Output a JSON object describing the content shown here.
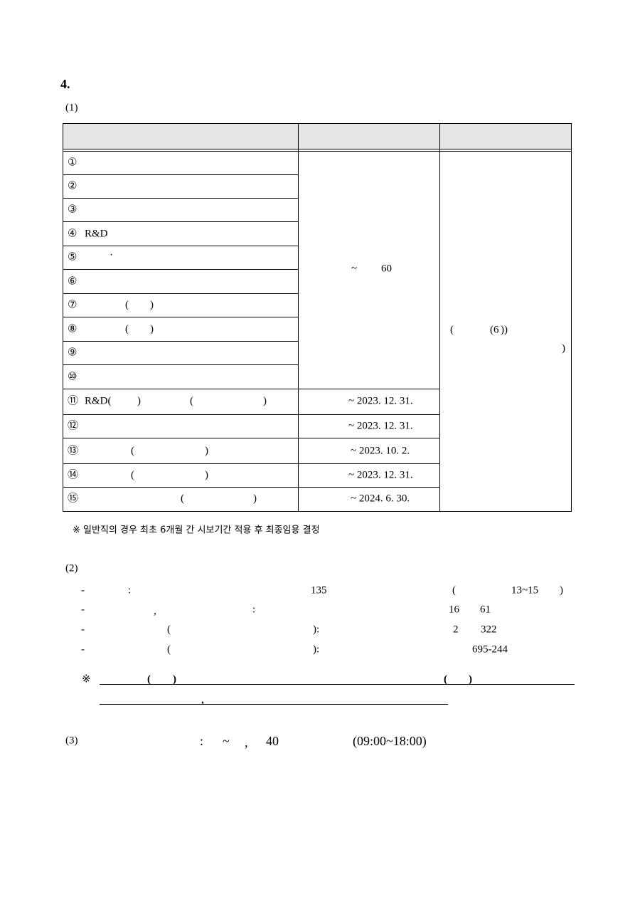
{
  "heading": "4.",
  "section1": {
    "label": "(1)",
    "rows": [
      {
        "num": "①"
      },
      {
        "num": "②"
      },
      {
        "num": "③"
      },
      {
        "num": "④",
        "parts": [
          "R&D"
        ]
      },
      {
        "num": "⑤",
        "parts": [
          "·"
        ]
      },
      {
        "num": "⑥"
      },
      {
        "num": "⑦",
        "parts": [
          "(",
          ")"
        ]
      },
      {
        "num": "⑧",
        "parts": [
          "(",
          ")"
        ]
      },
      {
        "num": "⑨"
      },
      {
        "num": "⑩"
      },
      {
        "num": "⑪",
        "parts": [
          "R&D(",
          ")",
          "(",
          ")"
        ],
        "period": "~ 2023. 12. 31."
      },
      {
        "num": "⑫",
        "period": "~ 2023. 12. 31."
      },
      {
        "num": "⑬",
        "parts": [
          "(",
          ")"
        ],
        "period": "~ 2023. 10. 2."
      },
      {
        "num": "⑭",
        "parts": [
          "(",
          ")"
        ],
        "period": "~ 2023. 12. 31."
      },
      {
        "num": "⑮",
        "parts": [
          "(",
          ")"
        ],
        "period": "~ 2024. 6. 30."
      }
    ],
    "merged_period": [
      "~",
      "60"
    ],
    "remark": [
      "(",
      "(6",
      "))",
      ")"
    ],
    "note": "※ 일반직의 경우 최초 6개월 간 시보기간 적용 후 최종임용 결정"
  },
  "section2": {
    "label": "(2)",
    "line1": [
      "-",
      ":",
      "135",
      "(",
      "13~15",
      ")"
    ],
    "line2": [
      "-",
      ",",
      ":",
      "16",
      "61"
    ],
    "line3": [
      "-",
      "(",
      "):",
      "2",
      "322"
    ],
    "line4": [
      "-",
      "(",
      "):",
      "695-244"
    ],
    "notice": [
      "※",
      "(",
      ")",
      "(",
      ")",
      ","
    ]
  },
  "section3": {
    "label": "(3)",
    "parts": [
      ":",
      "~",
      ",",
      "40",
      "(09:00~18:00)"
    ]
  }
}
